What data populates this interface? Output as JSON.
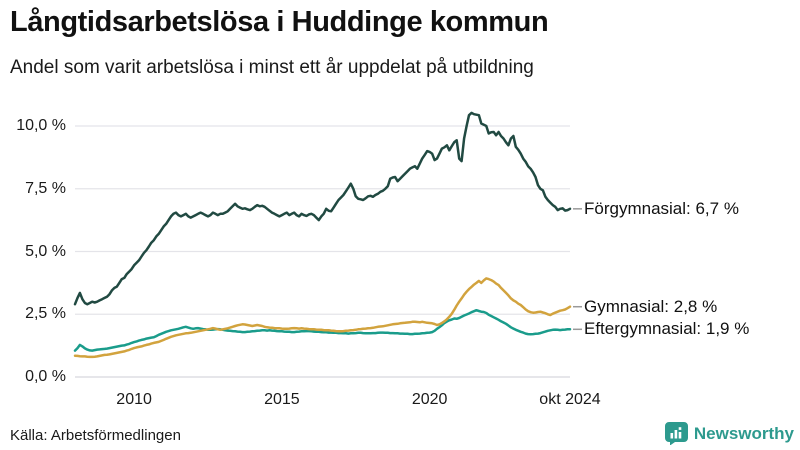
{
  "footer": {
    "source": "Källa: Arbetsförmedlingen",
    "brand": "Newsworthy",
    "brand_color": "#2d9a8e"
  },
  "chart_data": {
    "type": "line",
    "title": "Långtidsarbetslösa i Huddinge kommun",
    "subtitle": "Andel som varit arbetslösa i minst ett år uppdelat på utbildning",
    "grid": true,
    "legend_position": "right-end-labels",
    "connector_color": "#999999",
    "x_axis": {
      "start": "2008-01",
      "end": "2024-10",
      "interval": "monthly",
      "ticks": [
        {
          "label": "2010",
          "month_index": 24
        },
        {
          "label": "2015",
          "month_index": 84
        },
        {
          "label": "2020",
          "month_index": 144
        },
        {
          "label": "okt 2024",
          "month_index": 201
        }
      ]
    },
    "y_axis": {
      "unit": "%",
      "min": 0,
      "max": 10,
      "ticks": [
        {
          "label": "10,0 %",
          "value": 10.0
        },
        {
          "label": "7,5 %",
          "value": 7.5
        },
        {
          "label": "5,0 %",
          "value": 5.0
        },
        {
          "label": "2,5 %",
          "value": 2.5
        },
        {
          "label": "0,0 %",
          "value": 0.0
        }
      ]
    },
    "series": [
      {
        "name": "Förgymnasial",
        "color": "#214a42",
        "end_value": 6.7,
        "end_label": "Förgymnasial: 6,7 %",
        "values": [
          2.9,
          3.15,
          3.35,
          3.1,
          2.95,
          2.9,
          2.95,
          3.0,
          2.97,
          3.0,
          3.05,
          3.1,
          3.15,
          3.2,
          3.3,
          3.45,
          3.55,
          3.6,
          3.75,
          3.9,
          3.95,
          4.1,
          4.2,
          4.3,
          4.45,
          4.55,
          4.65,
          4.8,
          4.95,
          5.05,
          5.2,
          5.35,
          5.45,
          5.6,
          5.7,
          5.85,
          6.0,
          6.1,
          6.25,
          6.4,
          6.5,
          6.55,
          6.45,
          6.4,
          6.45,
          6.5,
          6.4,
          6.35,
          6.4,
          6.45,
          6.5,
          6.55,
          6.5,
          6.45,
          6.4,
          6.45,
          6.55,
          6.5,
          6.45,
          6.5,
          6.5,
          6.55,
          6.6,
          6.7,
          6.8,
          6.9,
          6.8,
          6.75,
          6.7,
          6.72,
          6.68,
          6.65,
          6.7,
          6.78,
          6.85,
          6.8,
          6.82,
          6.78,
          6.7,
          6.62,
          6.55,
          6.5,
          6.45,
          6.4,
          6.45,
          6.5,
          6.55,
          6.45,
          6.5,
          6.55,
          6.45,
          6.4,
          6.5,
          6.45,
          6.42,
          6.48,
          6.5,
          6.45,
          6.35,
          6.25,
          6.4,
          6.5,
          6.7,
          6.62,
          6.6,
          6.75,
          6.9,
          7.05,
          7.15,
          7.25,
          7.4,
          7.55,
          7.7,
          7.5,
          7.2,
          7.1,
          7.08,
          7.05,
          7.12,
          7.2,
          7.22,
          7.18,
          7.25,
          7.3,
          7.38,
          7.42,
          7.5,
          7.6,
          7.9,
          7.95,
          7.97,
          7.8,
          7.9,
          8.0,
          8.1,
          8.2,
          8.3,
          8.35,
          8.4,
          8.3,
          8.5,
          8.7,
          8.85,
          9.0,
          8.97,
          8.9,
          8.64,
          8.7,
          8.9,
          9.1,
          9.15,
          9.23,
          9.03,
          9.2,
          9.36,
          9.43,
          8.7,
          8.6,
          9.5,
          10.0,
          10.43,
          10.52,
          10.47,
          10.45,
          10.43,
          10.1,
          10.05,
          10.0,
          9.7,
          9.75,
          9.76,
          9.63,
          9.76,
          9.6,
          9.5,
          9.35,
          9.23,
          9.5,
          9.6,
          9.17,
          9.05,
          8.9,
          8.7,
          8.57,
          8.4,
          8.3,
          8.15,
          7.97,
          7.64,
          7.5,
          7.44,
          7.18,
          7.05,
          6.95,
          6.85,
          6.78,
          6.65,
          6.7,
          6.72,
          6.63,
          6.65,
          6.7
        ]
      },
      {
        "name": "Gymnasial",
        "color": "#d2a33e",
        "end_value": 2.8,
        "end_label": "Gymnasial: 2,8 %",
        "values": [
          0.85,
          0.84,
          0.83,
          0.82,
          0.82,
          0.81,
          0.8,
          0.8,
          0.81,
          0.82,
          0.84,
          0.86,
          0.88,
          0.89,
          0.9,
          0.92,
          0.94,
          0.96,
          0.98,
          1.0,
          1.02,
          1.05,
          1.08,
          1.12,
          1.15,
          1.18,
          1.2,
          1.22,
          1.25,
          1.28,
          1.3,
          1.33,
          1.36,
          1.38,
          1.4,
          1.44,
          1.48,
          1.52,
          1.56,
          1.6,
          1.63,
          1.66,
          1.68,
          1.7,
          1.72,
          1.74,
          1.75,
          1.76,
          1.78,
          1.8,
          1.82,
          1.84,
          1.86,
          1.88,
          1.9,
          1.92,
          1.95,
          1.93,
          1.9,
          1.88,
          1.9,
          1.92,
          1.94,
          1.97,
          2.0,
          2.03,
          2.06,
          2.08,
          2.1,
          2.09,
          2.07,
          2.05,
          2.03,
          2.05,
          2.07,
          2.05,
          2.03,
          2.0,
          1.98,
          1.97,
          1.96,
          1.95,
          1.94,
          1.94,
          1.93,
          1.92,
          1.92,
          1.93,
          1.94,
          1.95,
          1.94,
          1.93,
          1.94,
          1.93,
          1.92,
          1.91,
          1.9,
          1.9,
          1.89,
          1.88,
          1.88,
          1.87,
          1.86,
          1.86,
          1.85,
          1.84,
          1.83,
          1.82,
          1.82,
          1.83,
          1.84,
          1.85,
          1.86,
          1.87,
          1.88,
          1.9,
          1.91,
          1.92,
          1.93,
          1.94,
          1.95,
          1.96,
          1.98,
          2.0,
          2.01,
          2.02,
          2.04,
          2.06,
          2.08,
          2.1,
          2.11,
          2.12,
          2.14,
          2.15,
          2.16,
          2.17,
          2.18,
          2.2,
          2.2,
          2.19,
          2.18,
          2.2,
          2.18,
          2.16,
          2.15,
          2.14,
          2.11,
          2.07,
          2.1,
          2.15,
          2.22,
          2.3,
          2.4,
          2.52,
          2.68,
          2.85,
          3.0,
          3.13,
          3.28,
          3.4,
          3.5,
          3.59,
          3.68,
          3.75,
          3.83,
          3.75,
          3.85,
          3.93,
          3.9,
          3.86,
          3.8,
          3.72,
          3.66,
          3.55,
          3.45,
          3.35,
          3.25,
          3.13,
          3.05,
          3.0,
          2.92,
          2.87,
          2.78,
          2.69,
          2.62,
          2.58,
          2.56,
          2.57,
          2.59,
          2.6,
          2.57,
          2.54,
          2.5,
          2.47,
          2.52,
          2.56,
          2.6,
          2.64,
          2.66,
          2.69,
          2.74,
          2.8
        ]
      },
      {
        "name": "Eftergymnasial",
        "color": "#1a9c8b",
        "end_value": 1.9,
        "end_label": "Eftergymnasial: 1,9 %",
        "values": [
          1.05,
          1.15,
          1.28,
          1.22,
          1.14,
          1.09,
          1.06,
          1.05,
          1.07,
          1.09,
          1.1,
          1.11,
          1.12,
          1.13,
          1.15,
          1.17,
          1.19,
          1.21,
          1.23,
          1.25,
          1.26,
          1.29,
          1.32,
          1.36,
          1.39,
          1.42,
          1.45,
          1.48,
          1.5,
          1.53,
          1.55,
          1.57,
          1.58,
          1.63,
          1.68,
          1.72,
          1.76,
          1.8,
          1.83,
          1.86,
          1.88,
          1.9,
          1.92,
          1.95,
          1.98,
          2.0,
          1.97,
          1.94,
          1.92,
          1.94,
          1.95,
          1.93,
          1.91,
          1.9,
          1.88,
          1.88,
          1.89,
          1.9,
          1.91,
          1.9,
          1.88,
          1.86,
          1.85,
          1.84,
          1.83,
          1.82,
          1.81,
          1.8,
          1.79,
          1.79,
          1.8,
          1.81,
          1.82,
          1.83,
          1.84,
          1.85,
          1.86,
          1.86,
          1.85,
          1.86,
          1.85,
          1.84,
          1.83,
          1.82,
          1.82,
          1.81,
          1.8,
          1.8,
          1.79,
          1.79,
          1.8,
          1.81,
          1.82,
          1.82,
          1.83,
          1.83,
          1.82,
          1.81,
          1.8,
          1.8,
          1.79,
          1.78,
          1.78,
          1.77,
          1.77,
          1.76,
          1.76,
          1.75,
          1.75,
          1.74,
          1.74,
          1.73,
          1.74,
          1.74,
          1.75,
          1.76,
          1.76,
          1.75,
          1.74,
          1.74,
          1.74,
          1.75,
          1.75,
          1.76,
          1.77,
          1.77,
          1.76,
          1.76,
          1.75,
          1.75,
          1.74,
          1.74,
          1.73,
          1.73,
          1.72,
          1.72,
          1.71,
          1.71,
          1.72,
          1.72,
          1.73,
          1.74,
          1.75,
          1.76,
          1.77,
          1.79,
          1.84,
          1.92,
          1.99,
          2.06,
          2.15,
          2.21,
          2.26,
          2.29,
          2.33,
          2.32,
          2.35,
          2.4,
          2.45,
          2.49,
          2.53,
          2.58,
          2.62,
          2.66,
          2.63,
          2.6,
          2.59,
          2.55,
          2.48,
          2.43,
          2.38,
          2.33,
          2.28,
          2.22,
          2.17,
          2.12,
          2.05,
          1.98,
          1.93,
          1.88,
          1.84,
          1.8,
          1.77,
          1.73,
          1.71,
          1.7,
          1.71,
          1.72,
          1.73,
          1.75,
          1.78,
          1.81,
          1.84,
          1.86,
          1.88,
          1.89,
          1.88,
          1.87,
          1.88,
          1.89,
          1.9,
          1.9
        ]
      }
    ]
  }
}
